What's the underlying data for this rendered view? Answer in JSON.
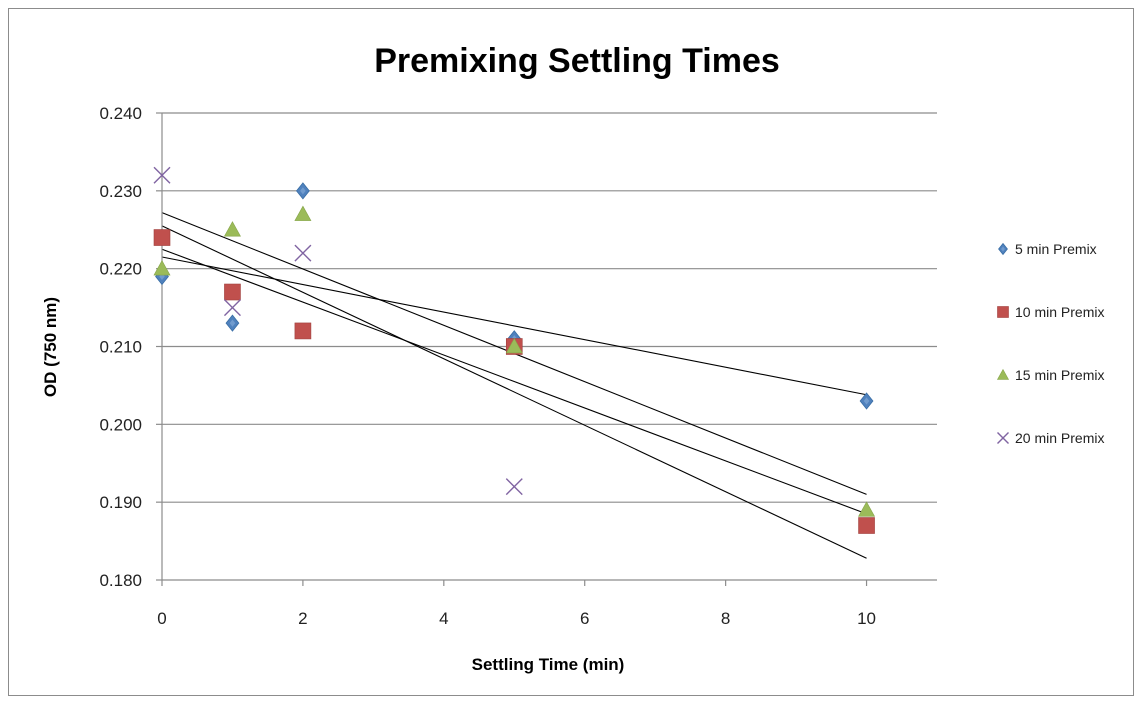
{
  "chart_data": {
    "type": "scatter",
    "title": "Premixing Settling Times",
    "xlabel": "Settling Time (min)",
    "ylabel": "OD (750 nm)",
    "xlim": [
      0,
      11
    ],
    "ylim": [
      0.18,
      0.24
    ],
    "xticks": [
      "0",
      "2",
      "4",
      "6",
      "8",
      "10"
    ],
    "xtick_values": [
      0,
      2,
      4,
      6,
      8,
      10
    ],
    "yticks": [
      "0.180",
      "0.190",
      "0.200",
      "0.210",
      "0.220",
      "0.230",
      "0.240"
    ],
    "ytick_values": [
      0.18,
      0.19,
      0.2,
      0.21,
      0.22,
      0.23,
      0.24
    ],
    "grid": "horizontal",
    "legend_position": "right",
    "series": [
      {
        "name": "5 min Premix",
        "marker": "diamond",
        "color": "#4F81BD",
        "x": [
          0,
          1,
          2,
          5,
          10
        ],
        "y": [
          0.219,
          0.213,
          0.23,
          0.211,
          0.203
        ],
        "trendline": [
          0.2215,
          0.2038
        ]
      },
      {
        "name": "10 min Premix",
        "marker": "square",
        "color": "#C0504D",
        "x": [
          0,
          1,
          2,
          5,
          10
        ],
        "y": [
          0.224,
          0.217,
          0.212,
          0.21,
          0.187
        ],
        "trendline": [
          0.2225,
          0.1885
        ]
      },
      {
        "name": "15 min Premix",
        "marker": "triangle",
        "color": "#9BBB59",
        "x": [
          0,
          1,
          2,
          5,
          10
        ],
        "y": [
          0.22,
          0.225,
          0.227,
          0.21,
          0.189
        ],
        "trendline": [
          0.2272,
          0.191
        ]
      },
      {
        "name": "20 min Premix",
        "marker": "x",
        "color": "#8064A2",
        "x": [
          0,
          1,
          2,
          5
        ],
        "y": [
          0.232,
          0.215,
          0.222,
          0.192
        ],
        "trendline": [
          0.2255,
          0.1828
        ]
      }
    ]
  }
}
